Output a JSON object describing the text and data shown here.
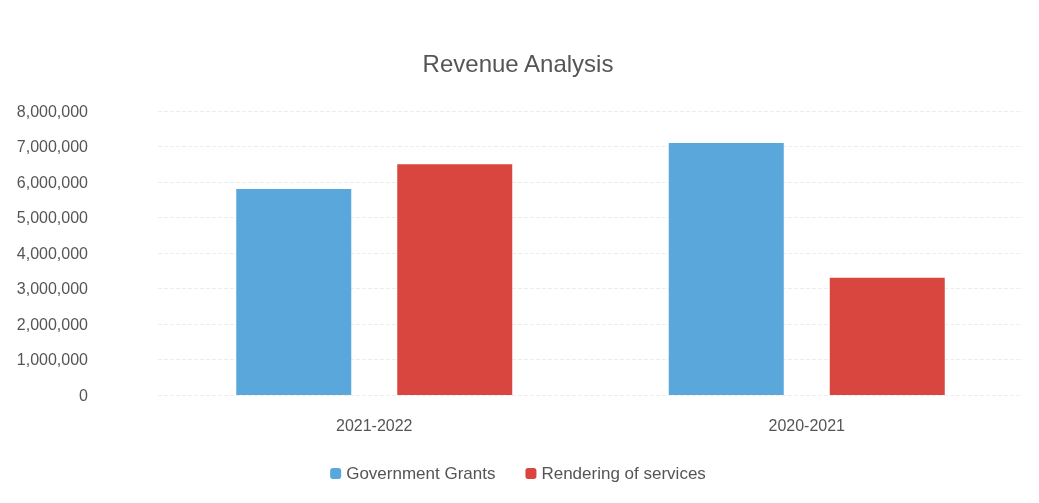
{
  "chart_data": {
    "type": "bar",
    "title": "Revenue Analysis",
    "categories": [
      "2021-2022",
      "2020-2021"
    ],
    "series": [
      {
        "name": "Government Grants",
        "color": "#5aa7dc",
        "values": [
          5800000,
          7100000
        ]
      },
      {
        "name": "Rendering of services",
        "color": "#d9463f",
        "values": [
          6500000,
          3300000
        ]
      }
    ],
    "ylim": [
      0,
      8000000
    ],
    "yticks": [
      0,
      {
        "value": 1000000,
        "label": "1,000,000"
      },
      {
        "value": 2000000,
        "label": "2,000,000"
      },
      {
        "value": 3000000,
        "label": "3,000,000"
      },
      {
        "value": 4000000,
        "label": "4,000,000"
      },
      {
        "value": 5000000,
        "label": "5,000,000"
      },
      {
        "value": 6000000,
        "label": "6,000,000"
      },
      {
        "value": 7000000,
        "label": "7,000,000"
      },
      {
        "value": 8000000,
        "label": "8,000,000"
      }
    ],
    "grid": "y",
    "legend": "bottom"
  }
}
